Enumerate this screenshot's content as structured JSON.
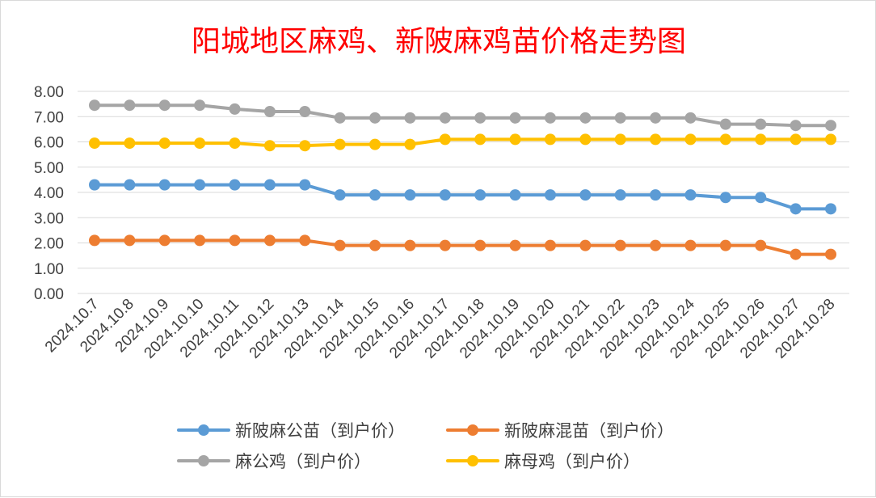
{
  "chart_data": {
    "type": "line",
    "title": "阳城地区麻鸡、新陂麻鸡苗价格走势图",
    "ylim": [
      0,
      8
    ],
    "yticks": [
      "0.00",
      "1.00",
      "2.00",
      "3.00",
      "4.00",
      "5.00",
      "6.00",
      "7.00",
      "8.00"
    ],
    "grid": true,
    "legend_position": "bottom",
    "categories": [
      "2024.10.7",
      "2024.10.8",
      "2024.10.9",
      "2024.10.10",
      "2024.10.11",
      "2024.10.12",
      "2024.10.13",
      "2024.10.14",
      "2024.10.15",
      "2024.10.16",
      "2024.10.17",
      "2024.10.18",
      "2024.10.19",
      "2024.10.20",
      "2024.10.21",
      "2024.10.22",
      "2024.10.23",
      "2024.10.24",
      "2024.10.25",
      "2024.10.26",
      "2024.10.27",
      "2024.10.28"
    ],
    "series": [
      {
        "name": "新陂麻公苗（到户价）",
        "color": "#5b9bd5",
        "values": [
          4.3,
          4.3,
          4.3,
          4.3,
          4.3,
          4.3,
          4.3,
          3.9,
          3.9,
          3.9,
          3.9,
          3.9,
          3.9,
          3.9,
          3.9,
          3.9,
          3.9,
          3.9,
          3.8,
          3.8,
          3.35,
          3.35
        ]
      },
      {
        "name": "新陂麻混苗（到户价）",
        "color": "#ed7d31",
        "values": [
          2.1,
          2.1,
          2.1,
          2.1,
          2.1,
          2.1,
          2.1,
          1.9,
          1.9,
          1.9,
          1.9,
          1.9,
          1.9,
          1.9,
          1.9,
          1.9,
          1.9,
          1.9,
          1.9,
          1.9,
          1.55,
          1.55
        ]
      },
      {
        "name": "麻公鸡（到户价）",
        "color": "#a5a5a5",
        "values": [
          7.45,
          7.45,
          7.45,
          7.45,
          7.3,
          7.2,
          7.2,
          6.95,
          6.95,
          6.95,
          6.95,
          6.95,
          6.95,
          6.95,
          6.95,
          6.95,
          6.95,
          6.95,
          6.7,
          6.7,
          6.65,
          6.65
        ]
      },
      {
        "name": "麻母鸡（到户价）",
        "color": "#ffc000",
        "values": [
          5.95,
          5.95,
          5.95,
          5.95,
          5.95,
          5.85,
          5.85,
          5.9,
          5.9,
          5.9,
          6.1,
          6.1,
          6.1,
          6.1,
          6.1,
          6.1,
          6.1,
          6.1,
          6.1,
          6.1,
          6.1,
          6.1
        ]
      }
    ]
  }
}
